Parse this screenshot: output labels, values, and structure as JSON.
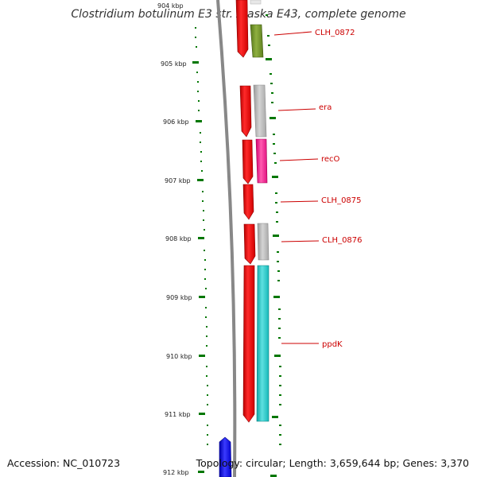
{
  "title": "Clostridium botulinum E3 str. Alaska E43, complete genome",
  "footer": {
    "accession": "Accession: NC_010723",
    "summary": "Topology: circular; Length: 3,659,644 bp; Genes: 3,370"
  },
  "axis": {
    "clipped_label": "904 kbp",
    "ticks": [
      "905 kbp",
      "906 kbp",
      "907 kbp",
      "908 kbp",
      "909 kbp",
      "910 kbp",
      "911 kbp",
      "912 kbp"
    ]
  },
  "genes": [
    "CLH_0872",
    "era",
    "recO",
    "CLH_0875",
    "CLH_0876",
    "ppdK"
  ],
  "colors": {
    "cds": "#ff0000",
    "backbone": "#888888",
    "tick": "#007700",
    "label": "#cc0000",
    "olive": "#6b8e23",
    "grey": "#b5b5b5",
    "magenta": "#ff1493",
    "cyan": "#20c8c8",
    "blue": "#0000ff"
  }
}
